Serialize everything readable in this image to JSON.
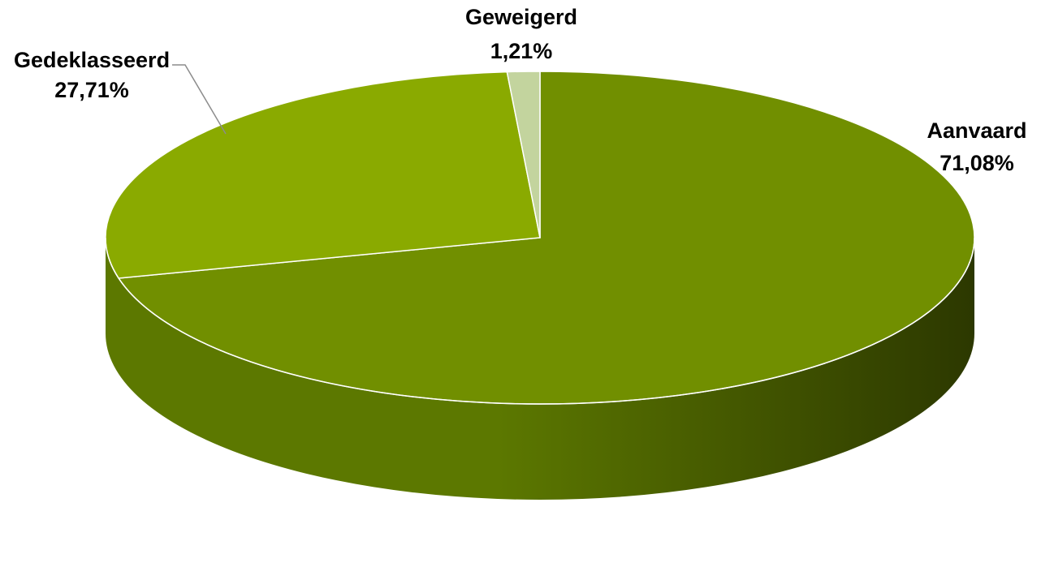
{
  "chart_data": {
    "type": "pie",
    "three_d": true,
    "title": "",
    "slices": [
      {
        "label": "Aanvaard",
        "value": 71.08,
        "value_text": "71,08%",
        "color": "#718f00"
      },
      {
        "label": "Gedeklasseerd",
        "value": 27.71,
        "value_text": "27,71%",
        "color": "#8aaa00"
      },
      {
        "label": "Geweigerd",
        "value": 1.21,
        "value_text": "1,21%",
        "color": "#c3d49e"
      }
    ],
    "side_colors": {
      "light": "#5c7800",
      "dark": "#2c3800"
    },
    "edge_color": "#ffffff",
    "legend": "none"
  }
}
